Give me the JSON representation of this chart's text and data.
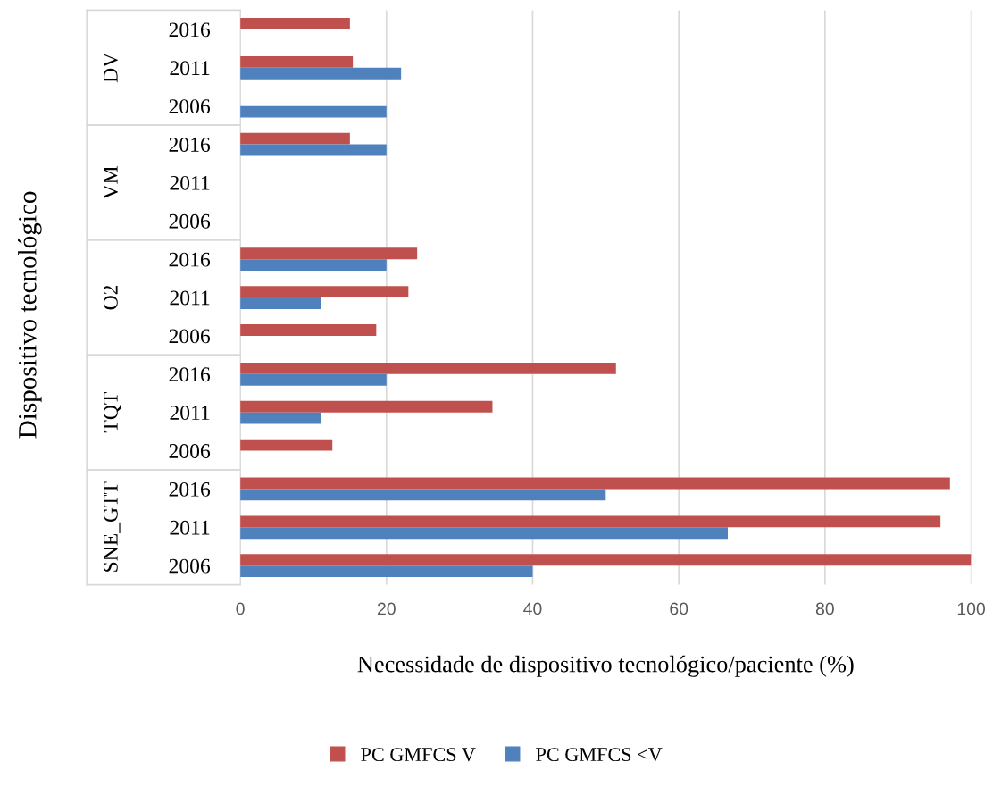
{
  "chart_data": {
    "type": "bar",
    "orientation": "horizontal",
    "xlabel": "Necessidade de dispositivo tecnológico/paciente (%)",
    "ylabel": "Dispositivo tecnológico",
    "categories": [
      "2016",
      "2011",
      "2006",
      "2016",
      "2011",
      "2006",
      "2016",
      "2011",
      "2006",
      "2016",
      "2011",
      "2006",
      "2016",
      "2011",
      "2006"
    ],
    "annotations": [
      "DV",
      "VM",
      "O2",
      "TQT",
      "SNE_GTT"
    ],
    "series": [
      {
        "name": "PC GMFCS V",
        "color": "#c0504d",
        "values": [
          15,
          15.4,
          null,
          15,
          null,
          null,
          24.2,
          23,
          18.6,
          51.4,
          34.5,
          12.6,
          97.1,
          95.8,
          100
        ]
      },
      {
        "name": "PC GMFCS <V",
        "color": "#4f81bd",
        "values": [
          null,
          22,
          20,
          20,
          null,
          null,
          20,
          11,
          null,
          20,
          11,
          null,
          50,
          66.7,
          40
        ]
      }
    ],
    "xlim": [
      0,
      100
    ],
    "xticks": [
      0,
      20,
      40,
      60,
      80,
      100
    ],
    "grid": "x",
    "legend": "bottom"
  }
}
